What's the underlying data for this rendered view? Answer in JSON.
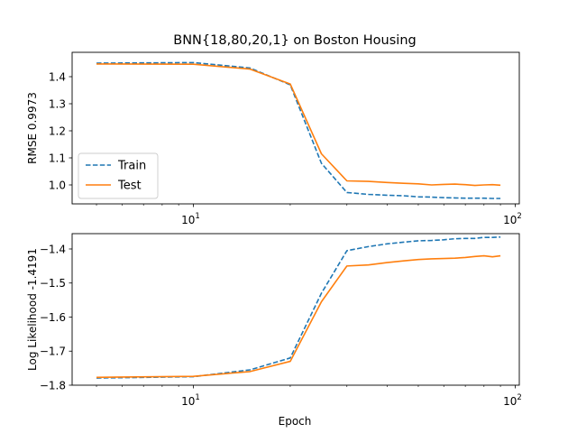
{
  "chart_data": [
    {
      "type": "line",
      "title": "BNN{18,80,20,1} on Boston Housing",
      "xlabel": "",
      "ylabel": "RMSE 0.9973",
      "xscale": "log",
      "xlim": [
        4.2,
        103
      ],
      "ylim": [
        0.93,
        1.49
      ],
      "yticks": [
        1.0,
        1.1,
        1.2,
        1.3,
        1.4
      ],
      "ytick_labels": [
        "1.0",
        "1.1",
        "1.2",
        "1.3",
        "1.4"
      ],
      "xtick_labels": [
        {
          "base": "10",
          "exp": "1",
          "value": 10
        },
        {
          "base": "10",
          "exp": "2",
          "value": 100
        }
      ],
      "legend": {
        "placement": "lower-left",
        "entries": [
          "Train",
          "Test"
        ]
      },
      "grid": false,
      "x": [
        5,
        10,
        15,
        20,
        25,
        30,
        35,
        40,
        45,
        50,
        55,
        60,
        65,
        70,
        75,
        80,
        85,
        90
      ],
      "series": [
        {
          "name": "Train",
          "color": "#1f77b4",
          "dash": "dashed",
          "values": [
            1.45,
            1.452,
            1.432,
            1.37,
            1.08,
            0.972,
            0.965,
            0.962,
            0.96,
            0.956,
            0.955,
            0.953,
            0.952,
            0.951,
            0.951,
            0.951,
            0.95,
            0.95
          ]
        },
        {
          "name": "Test",
          "color": "#ff7f0e",
          "dash": "solid",
          "values": [
            1.447,
            1.446,
            1.428,
            1.373,
            1.115,
            1.015,
            1.013,
            1.009,
            1.006,
            1.004,
            1.0,
            1.002,
            1.003,
            1.001,
            0.998,
            1.0,
            1.001,
            0.999
          ]
        }
      ]
    },
    {
      "type": "line",
      "title": "",
      "xlabel": "Epoch",
      "ylabel": "Log Likelihood -1.4191",
      "xscale": "log",
      "xlim": [
        4.2,
        103
      ],
      "ylim": [
        -1.8,
        -1.355
      ],
      "yticks": [
        -1.8,
        -1.7,
        -1.6,
        -1.5,
        -1.4
      ],
      "ytick_labels": [
        "−1.8",
        "−1.7",
        "−1.6",
        "−1.5",
        "−1.4"
      ],
      "xtick_labels": [
        {
          "base": "10",
          "exp": "1",
          "value": 10
        },
        {
          "base": "10",
          "exp": "2",
          "value": 100
        }
      ],
      "grid": false,
      "x": [
        5,
        10,
        15,
        20,
        25,
        30,
        35,
        40,
        45,
        50,
        55,
        60,
        65,
        70,
        75,
        80,
        85,
        90
      ],
      "series": [
        {
          "name": "Train",
          "color": "#1f77b4",
          "dash": "dashed",
          "values": [
            -1.779,
            -1.775,
            -1.755,
            -1.72,
            -1.53,
            -1.405,
            -1.393,
            -1.385,
            -1.38,
            -1.376,
            -1.375,
            -1.373,
            -1.37,
            -1.369,
            -1.369,
            -1.366,
            -1.366,
            -1.365
          ]
        },
        {
          "name": "Test",
          "color": "#ff7f0e",
          "dash": "solid",
          "values": [
            -1.777,
            -1.774,
            -1.76,
            -1.73,
            -1.555,
            -1.45,
            -1.447,
            -1.44,
            -1.435,
            -1.431,
            -1.429,
            -1.428,
            -1.427,
            -1.425,
            -1.422,
            -1.42,
            -1.423,
            -1.42
          ]
        }
      ]
    }
  ]
}
